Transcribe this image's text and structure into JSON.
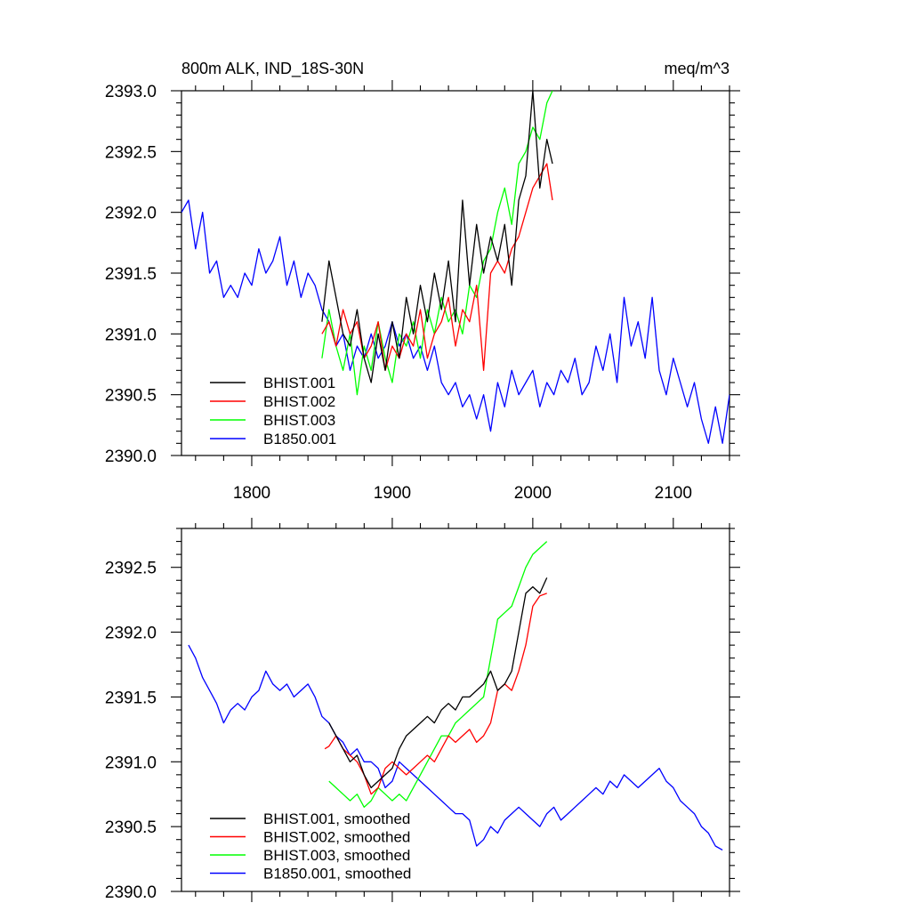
{
  "chart_data": [
    {
      "type": "line",
      "title": "800m ALK, IND_18S-30N",
      "units": "meq/m^3",
      "xlim": [
        1750,
        2140
      ],
      "ylim": [
        2390.0,
        2393.0
      ],
      "xticks": [
        1800,
        1900,
        2000,
        2100
      ],
      "yticks": [
        2390.0,
        2390.5,
        2391.0,
        2391.5,
        2392.0,
        2392.5,
        2393.0
      ],
      "xtick_labels": [
        "1800",
        "1900",
        "2000",
        "2100"
      ],
      "ytick_labels": [
        "2390.0",
        "2390.5",
        "2391.0",
        "2391.5",
        "2392.0",
        "2392.5",
        "2393.0"
      ],
      "legend_position": "bottom-left",
      "series": [
        {
          "name": "BHIST.001",
          "color": "#000000",
          "x": [
            1850,
            1855,
            1860,
            1865,
            1870,
            1875,
            1880,
            1885,
            1890,
            1895,
            1900,
            1905,
            1910,
            1915,
            1920,
            1925,
            1930,
            1935,
            1940,
            1945,
            1950,
            1955,
            1960,
            1965,
            1970,
            1975,
            1980,
            1985,
            1990,
            1995,
            2000,
            2005,
            2010,
            2014
          ],
          "y": [
            2391.1,
            2391.6,
            2391.3,
            2391.0,
            2390.9,
            2391.2,
            2390.8,
            2390.6,
            2391.0,
            2390.7,
            2391.1,
            2390.8,
            2391.3,
            2391.0,
            2391.4,
            2391.1,
            2391.5,
            2391.2,
            2391.6,
            2391.1,
            2392.1,
            2391.4,
            2391.9,
            2391.5,
            2391.8,
            2391.6,
            2391.9,
            2391.4,
            2392.1,
            2392.3,
            2393.0,
            2392.2,
            2392.6,
            2392.4
          ]
        },
        {
          "name": "BHIST.002",
          "color": "#ff0000",
          "x": [
            1850,
            1855,
            1860,
            1865,
            1870,
            1875,
            1880,
            1885,
            1890,
            1895,
            1900,
            1905,
            1910,
            1915,
            1920,
            1925,
            1930,
            1935,
            1940,
            1945,
            1950,
            1955,
            1960,
            1965,
            1970,
            1975,
            1980,
            1985,
            1990,
            1995,
            2000,
            2005,
            2010,
            2014
          ],
          "y": [
            2391.0,
            2391.1,
            2390.9,
            2391.2,
            2391.0,
            2391.1,
            2390.8,
            2390.9,
            2391.1,
            2390.7,
            2390.9,
            2390.8,
            2391.0,
            2390.9,
            2391.2,
            2390.8,
            2391.0,
            2391.1,
            2391.3,
            2390.9,
            2391.2,
            2391.1,
            2391.4,
            2390.7,
            2391.5,
            2391.6,
            2391.5,
            2391.7,
            2391.8,
            2392.0,
            2392.2,
            2392.3,
            2392.4,
            2392.1
          ]
        },
        {
          "name": "BHIST.003",
          "color": "#00ff00",
          "x": [
            1850,
            1855,
            1860,
            1865,
            1870,
            1875,
            1880,
            1885,
            1890,
            1895,
            1900,
            1905,
            1910,
            1915,
            1920,
            1925,
            1930,
            1935,
            1940,
            1945,
            1950,
            1955,
            1960,
            1965,
            1970,
            1975,
            1980,
            1985,
            1990,
            1995,
            2000,
            2005,
            2010,
            2014
          ],
          "y": [
            2390.8,
            2391.2,
            2390.9,
            2390.7,
            2391.0,
            2390.5,
            2390.9,
            2390.7,
            2391.1,
            2390.8,
            2390.6,
            2391.0,
            2390.9,
            2391.1,
            2390.8,
            2391.2,
            2391.0,
            2391.3,
            2391.1,
            2391.2,
            2391.0,
            2391.4,
            2391.3,
            2391.6,
            2391.7,
            2392.0,
            2392.2,
            2391.9,
            2392.4,
            2392.5,
            2392.7,
            2392.6,
            2392.9,
            2393.0
          ]
        },
        {
          "name": "B1850.001",
          "color": "#0000ff",
          "x": [
            1750,
            1755,
            1760,
            1765,
            1770,
            1775,
            1780,
            1785,
            1790,
            1795,
            1800,
            1805,
            1810,
            1815,
            1820,
            1825,
            1830,
            1835,
            1840,
            1845,
            1850,
            1855,
            1860,
            1865,
            1870,
            1875,
            1880,
            1885,
            1890,
            1895,
            1900,
            1905,
            1910,
            1915,
            1920,
            1925,
            1930,
            1935,
            1940,
            1945,
            1950,
            1955,
            1960,
            1965,
            1970,
            1975,
            1980,
            1985,
            1990,
            1995,
            2000,
            2005,
            2010,
            2015,
            2020,
            2025,
            2030,
            2035,
            2040,
            2045,
            2050,
            2055,
            2060,
            2065,
            2070,
            2075,
            2080,
            2085,
            2090,
            2095,
            2100,
            2105,
            2110,
            2115,
            2120,
            2125,
            2130,
            2135,
            2140
          ],
          "y": [
            2392.0,
            2392.1,
            2391.7,
            2392.0,
            2391.5,
            2391.6,
            2391.3,
            2391.4,
            2391.3,
            2391.5,
            2391.4,
            2391.7,
            2391.5,
            2391.6,
            2391.8,
            2391.4,
            2391.6,
            2391.3,
            2391.5,
            2391.4,
            2391.2,
            2391.1,
            2390.9,
            2391.0,
            2390.7,
            2390.9,
            2390.8,
            2391.0,
            2390.8,
            2390.9,
            2391.1,
            2390.9,
            2391.0,
            2390.8,
            2390.9,
            2390.7,
            2390.9,
            2390.6,
            2390.5,
            2390.6,
            2390.4,
            2390.5,
            2390.3,
            2390.5,
            2390.2,
            2390.6,
            2390.4,
            2390.7,
            2390.5,
            2390.6,
            2390.7,
            2390.4,
            2390.6,
            2390.5,
            2390.7,
            2390.6,
            2390.8,
            2390.5,
            2390.6,
            2390.9,
            2390.7,
            2391.0,
            2390.6,
            2391.3,
            2390.9,
            2391.1,
            2390.8,
            2391.3,
            2390.7,
            2390.5,
            2390.8,
            2390.6,
            2390.4,
            2390.6,
            2390.3,
            2390.1,
            2390.4,
            2390.1,
            2390.5
          ]
        }
      ]
    },
    {
      "type": "line",
      "title": "",
      "xlim": [
        1750,
        2140
      ],
      "ylim": [
        2390.0,
        2392.8
      ],
      "xticks": [
        1800,
        1900,
        2000,
        2100
      ],
      "yticks": [
        2390.0,
        2390.5,
        2391.0,
        2391.5,
        2392.0,
        2392.5
      ],
      "xtick_labels": [],
      "ytick_labels": [
        "2390.0",
        "2390.5",
        "2391.0",
        "2391.5",
        "2392.0",
        "2392.5"
      ],
      "legend_position": "bottom-left",
      "series": [
        {
          "name": "BHIST.001, smoothed",
          "color": "#000000",
          "x": [
            1855,
            1860,
            1865,
            1870,
            1875,
            1880,
            1885,
            1890,
            1895,
            1900,
            1905,
            1910,
            1915,
            1920,
            1925,
            1930,
            1935,
            1940,
            1945,
            1950,
            1955,
            1960,
            1965,
            1970,
            1975,
            1980,
            1985,
            1990,
            1995,
            2000,
            2005,
            2010
          ],
          "y": [
            2391.3,
            2391.2,
            2391.1,
            2391.0,
            2391.05,
            2390.9,
            2390.8,
            2390.85,
            2390.9,
            2390.95,
            2391.1,
            2391.2,
            2391.25,
            2391.3,
            2391.35,
            2391.3,
            2391.4,
            2391.45,
            2391.4,
            2391.5,
            2391.5,
            2391.55,
            2391.6,
            2391.7,
            2391.55,
            2391.6,
            2391.7,
            2392.0,
            2392.3,
            2392.35,
            2392.3,
            2392.42
          ]
        },
        {
          "name": "BHIST.002, smoothed",
          "color": "#ff0000",
          "x": [
            1852,
            1855,
            1860,
            1865,
            1870,
            1875,
            1880,
            1885,
            1890,
            1895,
            1900,
            1905,
            1910,
            1915,
            1920,
            1925,
            1930,
            1935,
            1940,
            1945,
            1950,
            1955,
            1960,
            1965,
            1970,
            1975,
            1980,
            1985,
            1990,
            1995,
            2000,
            2005,
            2010
          ],
          "y": [
            2391.1,
            2391.12,
            2391.2,
            2391.1,
            2391.05,
            2391.0,
            2390.9,
            2390.75,
            2390.8,
            2390.95,
            2391.0,
            2390.95,
            2390.9,
            2390.95,
            2391.0,
            2391.05,
            2391.0,
            2391.1,
            2391.2,
            2391.15,
            2391.2,
            2391.25,
            2391.15,
            2391.2,
            2391.3,
            2391.55,
            2391.6,
            2391.55,
            2391.7,
            2391.9,
            2392.2,
            2392.28,
            2392.3
          ]
        },
        {
          "name": "BHIST.003, smoothed",
          "color": "#00ff00",
          "x": [
            1855,
            1860,
            1865,
            1870,
            1875,
            1880,
            1885,
            1890,
            1895,
            1900,
            1905,
            1910,
            1915,
            1920,
            1925,
            1930,
            1935,
            1940,
            1945,
            1950,
            1955,
            1960,
            1965,
            1970,
            1975,
            1980,
            1985,
            1990,
            1995,
            2000,
            2005,
            2010
          ],
          "y": [
            2390.85,
            2390.8,
            2390.75,
            2390.7,
            2390.75,
            2390.65,
            2390.7,
            2390.8,
            2390.75,
            2390.7,
            2390.75,
            2390.7,
            2390.8,
            2390.9,
            2391.0,
            2391.1,
            2391.2,
            2391.2,
            2391.3,
            2391.35,
            2391.4,
            2391.45,
            2391.5,
            2391.8,
            2392.1,
            2392.15,
            2392.2,
            2392.35,
            2392.5,
            2392.6,
            2392.65,
            2392.7
          ]
        },
        {
          "name": "B1850.001, smoothed",
          "color": "#0000ff",
          "x": [
            1755,
            1760,
            1765,
            1770,
            1775,
            1780,
            1785,
            1790,
            1795,
            1800,
            1805,
            1810,
            1815,
            1820,
            1825,
            1830,
            1835,
            1840,
            1845,
            1850,
            1855,
            1860,
            1865,
            1870,
            1875,
            1880,
            1885,
            1890,
            1895,
            1900,
            1905,
            1910,
            1915,
            1920,
            1925,
            1930,
            1935,
            1940,
            1945,
            1950,
            1955,
            1960,
            1965,
            1970,
            1975,
            1980,
            1985,
            1990,
            1995,
            2000,
            2005,
            2010,
            2015,
            2020,
            2025,
            2030,
            2035,
            2040,
            2045,
            2050,
            2055,
            2060,
            2065,
            2070,
            2075,
            2080,
            2085,
            2090,
            2095,
            2100,
            2105,
            2110,
            2115,
            2120,
            2125,
            2130,
            2135
          ],
          "y": [
            2391.9,
            2391.8,
            2391.65,
            2391.55,
            2391.45,
            2391.3,
            2391.4,
            2391.45,
            2391.4,
            2391.5,
            2391.55,
            2391.7,
            2391.6,
            2391.55,
            2391.6,
            2391.5,
            2391.55,
            2391.6,
            2391.5,
            2391.35,
            2391.3,
            2391.2,
            2391.15,
            2391.05,
            2391.1,
            2391.0,
            2391.0,
            2390.95,
            2390.8,
            2390.85,
            2391.0,
            2390.95,
            2390.9,
            2390.85,
            2390.8,
            2390.75,
            2390.7,
            2390.65,
            2390.6,
            2390.6,
            2390.55,
            2390.35,
            2390.4,
            2390.5,
            2390.45,
            2390.55,
            2390.6,
            2390.65,
            2390.6,
            2390.55,
            2390.5,
            2390.6,
            2390.65,
            2390.55,
            2390.6,
            2390.65,
            2390.7,
            2390.75,
            2390.8,
            2390.75,
            2390.85,
            2390.8,
            2390.9,
            2390.85,
            2390.8,
            2390.85,
            2390.9,
            2390.95,
            2390.85,
            2390.8,
            2390.7,
            2390.65,
            2390.6,
            2390.5,
            2390.45,
            2390.35,
            2390.32
          ]
        }
      ]
    }
  ]
}
